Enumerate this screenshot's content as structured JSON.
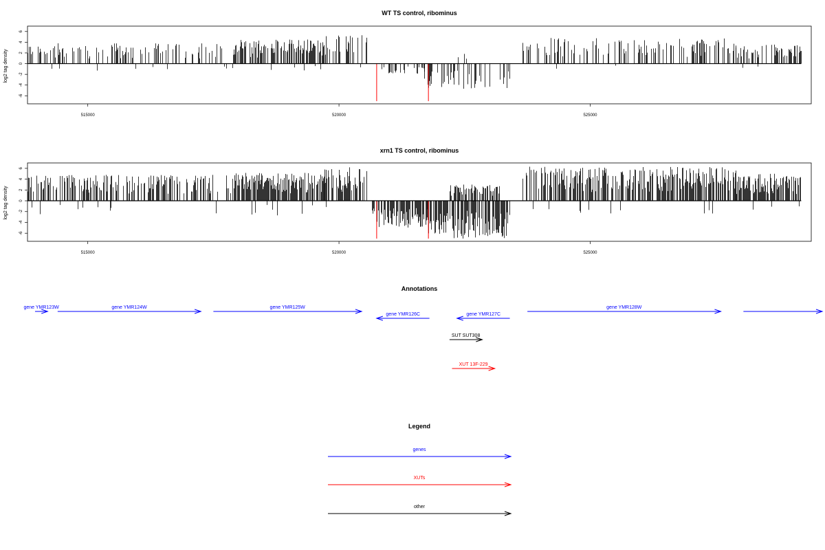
{
  "colors": {
    "gene": "#0000ff",
    "xut": "#ff0000",
    "other": "#000000",
    "bar": "#000000",
    "highlight": "#ff0000"
  },
  "chart_data": [
    {
      "type": "bar",
      "title": "WT TS control, ribominus",
      "ylabel": "log2 tag density",
      "xlim": [
        513800,
        529400
      ],
      "ylim": [
        -7.5,
        7
      ],
      "x_ticks": [
        515000,
        520000,
        525000
      ],
      "x_tick_labels": [
        "515000",
        "520000",
        "525000"
      ],
      "y_ticks": [
        6,
        4,
        2,
        0,
        -2,
        -4,
        -6
      ],
      "y_tick_labels": [
        "6",
        "4",
        "2",
        "0",
        "-2",
        "-4",
        "-6"
      ],
      "positive_segments": [
        {
          "from": 513800,
          "to": 517900,
          "density": 0.3,
          "max": 3.8,
          "seed": 11
        },
        {
          "from": 517900,
          "to": 519700,
          "density": 0.55,
          "max": 4.5,
          "seed": 12
        },
        {
          "from": 519700,
          "to": 520550,
          "density": 0.35,
          "max": 5.3,
          "seed": 13
        },
        {
          "from": 522300,
          "to": 523100,
          "density": 0.12,
          "max": 2.0,
          "seed": 14
        },
        {
          "from": 523650,
          "to": 527900,
          "density": 0.32,
          "max": 5.0,
          "seed": 15
        },
        {
          "from": 527900,
          "to": 529200,
          "density": 0.45,
          "max": 3.6,
          "seed": 16
        }
      ],
      "negative_segments": [
        {
          "from": 513800,
          "to": 520500,
          "density": 0.02,
          "max": 1.3,
          "seed": 21
        },
        {
          "from": 520850,
          "to": 521700,
          "density": 0.28,
          "max": 2.0,
          "seed": 22
        },
        {
          "from": 521700,
          "to": 523400,
          "density": 0.3,
          "max": 4.8,
          "seed": 23
        },
        {
          "from": 523650,
          "to": 529200,
          "density": 0.02,
          "max": 1.1,
          "seed": 24
        }
      ],
      "highlight_bars": [
        {
          "x": 520750,
          "y": -7.0
        },
        {
          "x": 521780,
          "y": -7.0
        }
      ]
    },
    {
      "type": "bar",
      "title": "xrn1 TS control, ribominus",
      "ylabel": "log2 tag density",
      "xlim": [
        513800,
        529400
      ],
      "ylim": [
        -7.5,
        7
      ],
      "x_ticks": [
        515000,
        520000,
        525000
      ],
      "x_tick_labels": [
        "515000",
        "520000",
        "525000"
      ],
      "y_ticks": [
        6,
        4,
        2,
        0,
        -2,
        -4,
        -6
      ],
      "y_tick_labels": [
        "6",
        "4",
        "2",
        "0",
        "-2",
        "-4",
        "-6"
      ],
      "positive_segments": [
        {
          "from": 513800,
          "to": 517900,
          "density": 0.45,
          "max": 4.8,
          "seed": 31
        },
        {
          "from": 517900,
          "to": 519700,
          "density": 0.75,
          "max": 5.2,
          "seed": 32
        },
        {
          "from": 519700,
          "to": 520550,
          "density": 0.6,
          "max": 6.2,
          "seed": 33
        },
        {
          "from": 522200,
          "to": 523200,
          "density": 0.6,
          "max": 3.0,
          "seed": 34
        },
        {
          "from": 523650,
          "to": 527900,
          "density": 0.6,
          "max": 6.3,
          "seed": 35
        },
        {
          "from": 527900,
          "to": 529200,
          "density": 0.7,
          "max": 5.0,
          "seed": 36
        }
      ],
      "negative_segments": [
        {
          "from": 513800,
          "to": 520500,
          "density": 0.04,
          "max": 2.7,
          "seed": 41
        },
        {
          "from": 520650,
          "to": 521750,
          "density": 0.75,
          "max": 5.0,
          "seed": 42
        },
        {
          "from": 521750,
          "to": 523400,
          "density": 0.75,
          "max": 7.0,
          "seed": 43
        },
        {
          "from": 523650,
          "to": 529200,
          "density": 0.04,
          "max": 2.4,
          "seed": 44
        }
      ],
      "highlight_bars": [
        {
          "x": 520750,
          "y": -7.0
        },
        {
          "x": 521780,
          "y": -7.0
        }
      ]
    }
  ],
  "annotations": {
    "title": "Annotations",
    "features": [
      {
        "label": "gene YMR123W",
        "kind": "gene",
        "start": 513950,
        "end": 514200,
        "strand": "+",
        "row": 0
      },
      {
        "label": "gene YMR124W",
        "kind": "gene",
        "start": 514400,
        "end": 517250,
        "strand": "+",
        "row": 0
      },
      {
        "label": "gene YMR125W",
        "kind": "gene",
        "start": 517500,
        "end": 520450,
        "strand": "+",
        "row": 0
      },
      {
        "label": "gene YMR126C",
        "kind": "gene",
        "start": 520750,
        "end": 521800,
        "strand": "-",
        "row": 1
      },
      {
        "label": "gene YMR127C",
        "kind": "gene",
        "start": 522350,
        "end": 523400,
        "strand": "-",
        "row": 1
      },
      {
        "label": "gene YMR128W",
        "kind": "gene",
        "start": 523750,
        "end": 527600,
        "strand": "+",
        "row": 0
      },
      {
        "label": "",
        "kind": "gene",
        "start": 528050,
        "end": 529700,
        "strand": "+",
        "row": 0
      },
      {
        "label": "SUT SUT308",
        "kind": "other",
        "start": 522200,
        "end": 522850,
        "strand": "+",
        "row": 2
      },
      {
        "label": "XUT 13F-229",
        "kind": "xut",
        "start": 522250,
        "end": 523100,
        "strand": "+",
        "row": 3
      }
    ]
  },
  "legend": {
    "title": "Legend",
    "items": [
      {
        "label": "genes",
        "kind": "gene"
      },
      {
        "label": "XUTs",
        "kind": "xut"
      },
      {
        "label": "other",
        "kind": "other"
      }
    ]
  }
}
